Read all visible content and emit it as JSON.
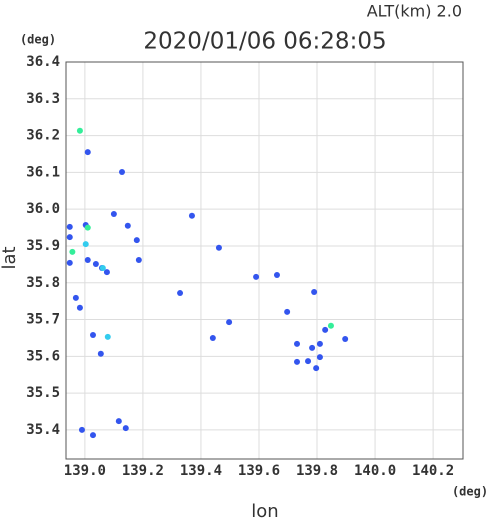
{
  "chart_data": {
    "type": "scatter",
    "title": "2020/01/06 06:28:05",
    "annotation": "ALT(km) 2.0",
    "x_label": "lon",
    "y_label": "lat",
    "x_unit": "(deg)",
    "y_unit": "(deg)",
    "xlim": [
      138.935,
      140.303
    ],
    "ylim": [
      35.321,
      36.4
    ],
    "xticks": [
      {
        "value": 139,
        "label": "139.0"
      },
      139.2,
      139.4,
      139.6,
      139.8,
      {
        "value": 140,
        "label": "140.0"
      },
      140.2
    ],
    "yticks": [
      36.4,
      36.3,
      36.2,
      36.1,
      {
        "value": 36,
        "label": "36.0"
      },
      35.9,
      35.8,
      35.7,
      35.6,
      35.5,
      35.4
    ],
    "grid": true,
    "series": [
      {
        "color": "#3355ee",
        "x": [
          139.01,
          139.128,
          138.948,
          139.003,
          138.948,
          139.01,
          138.948,
          139.038,
          139.076,
          138.969,
          138.983,
          139.028,
          139.055,
          138.99,
          139.028,
          139.117,
          139.141,
          139.1,
          139.179,
          139.186,
          139.369,
          139.441,
          139.462,
          139.59,
          139.662,
          139.697,
          139.79,
          139.828,
          139.897,
          139.731,
          139.81,
          139.731,
          139.769,
          139.81,
          139.797,
          139.059,
          139.148,
          139.328,
          139.497,
          139.783
        ],
        "y": [
          36.155,
          36.101,
          35.952,
          35.957,
          35.924,
          35.862,
          35.854,
          35.851,
          35.829,
          35.759,
          35.732,
          35.658,
          35.607,
          35.4,
          35.386,
          35.424,
          35.405,
          35.987,
          35.916,
          35.862,
          35.982,
          35.65,
          35.895,
          35.816,
          35.821,
          35.721,
          35.775,
          35.672,
          35.647,
          35.634,
          35.634,
          35.585,
          35.587,
          35.598,
          35.568,
          35.84,
          35.955,
          35.772,
          35.693,
          35.623
        ]
      },
      {
        "color": "#33ccee",
        "x": [
          139.003,
          139.079,
          139.062
        ],
        "y": [
          35.905,
          35.653,
          35.84
        ]
      },
      {
        "color": "#33ee99",
        "x": [
          138.983,
          138.957,
          139.848,
          139.01
        ],
        "y": [
          36.213,
          35.884,
          35.683,
          35.95
        ]
      }
    ]
  }
}
